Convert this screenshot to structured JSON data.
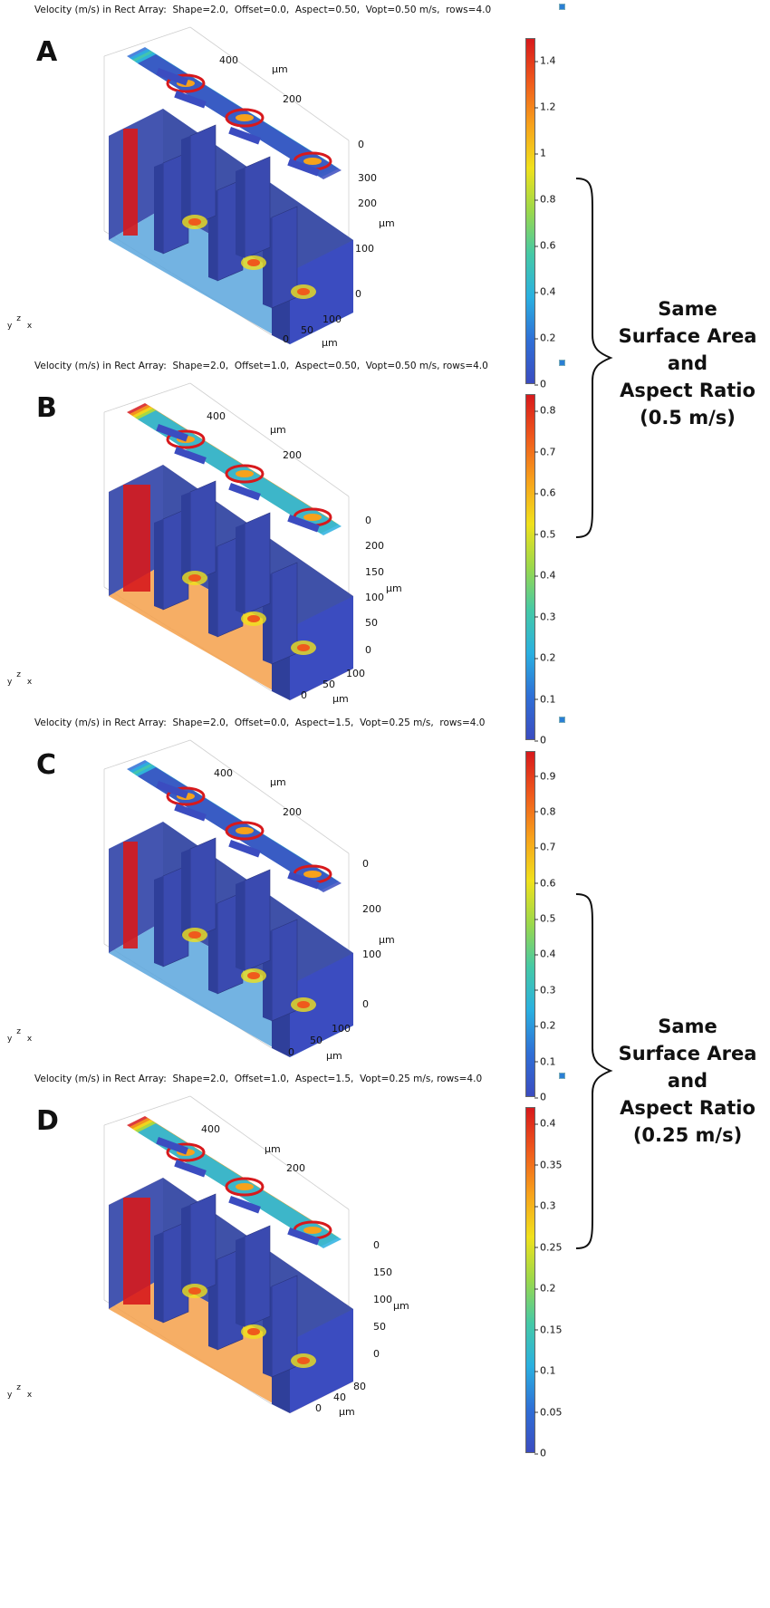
{
  "panels": [
    {
      "letter": "A",
      "title": "Velocity (m/s) in Rect Array:  Shape=2.0,  Offset=0.0,  Aspect=0.50,  Vopt=0.50 m/s,  rows=4.0",
      "colorbar_ticks": [
        "1.4",
        "1.2",
        "1",
        "0.8",
        "0.6",
        "0.4",
        "0.2",
        "0"
      ],
      "colorbar_max": 1.5,
      "tick_values": [
        1.4,
        1.2,
        1,
        0.8,
        0.6,
        0.4,
        0.2,
        0
      ],
      "axis_labels": [
        "400",
        "200",
        "0",
        "300",
        "200",
        "100",
        "0",
        "0",
        "50",
        "100"
      ],
      "unit": "μm"
    },
    {
      "letter": "B",
      "title": "Velocity (m/s) in Rect Array:  Shape=2.0,  Offset=1.0,  Aspect=0.50,  Vopt=0.50 m/s, rows=4.0",
      "colorbar_ticks": [
        "0.8",
        "0.7",
        "0.6",
        "0.5",
        "0.4",
        "0.3",
        "0.2",
        "0.1",
        "0"
      ],
      "colorbar_max": 0.84,
      "tick_values": [
        0.8,
        0.7,
        0.6,
        0.5,
        0.4,
        0.3,
        0.2,
        0.1,
        0
      ],
      "axis_labels": [
        "400",
        "200",
        "0",
        "200",
        "150",
        "100",
        "50",
        "0",
        "0",
        "50",
        "100"
      ],
      "unit": "μm"
    },
    {
      "letter": "C",
      "title": "Velocity (m/s) in Rect Array:  Shape=2.0,  Offset=0.0,  Aspect=1.5,  Vopt=0.25 m/s,  rows=4.0",
      "colorbar_ticks": [
        "0.9",
        "0.8",
        "0.7",
        "0.6",
        "0.5",
        "0.4",
        "0.3",
        "0.2",
        "0.1",
        "0"
      ],
      "colorbar_max": 0.97,
      "tick_values": [
        0.9,
        0.8,
        0.7,
        0.6,
        0.5,
        0.4,
        0.3,
        0.2,
        0.1,
        0
      ],
      "axis_labels": [
        "400",
        "200",
        "0",
        "200",
        "100",
        "0",
        "0",
        "50",
        "100"
      ],
      "unit": "μm"
    },
    {
      "letter": "D",
      "title": "Velocity (m/s) in Rect Array:  Shape=2.0,  Offset=1.0,  Aspect=1.5,  Vopt=0.25 m/s, rows=4.0",
      "colorbar_ticks": [
        "0.4",
        "0.35",
        "0.3",
        "0.25",
        "0.2",
        "0.15",
        "0.1",
        "0.05",
        "0"
      ],
      "colorbar_max": 0.42,
      "tick_values": [
        0.4,
        0.35,
        0.3,
        0.25,
        0.2,
        0.15,
        0.1,
        0.05,
        0
      ],
      "axis_labels": [
        "400",
        "200",
        "0",
        "150",
        "100",
        "50",
        "0",
        "0",
        "40",
        "80"
      ],
      "unit": "μm"
    }
  ],
  "triad": {
    "y": "y",
    "z": "z",
    "x": "x"
  },
  "annotations": [
    {
      "lines": [
        "Same",
        "Surface Area",
        "and",
        "Aspect Ratio",
        "(0.5 m/s)"
      ]
    },
    {
      "lines": [
        "Same",
        "Surface Area",
        "and",
        "Aspect Ratio",
        "(0.25 m/s)"
      ]
    }
  ],
  "colormap": [
    "#3b4cc0",
    "#2f6fd6",
    "#2ab0e0",
    "#45c9a6",
    "#9bd84b",
    "#f0e11c",
    "#f7a21b",
    "#ef5a1c",
    "#d7191c"
  ]
}
